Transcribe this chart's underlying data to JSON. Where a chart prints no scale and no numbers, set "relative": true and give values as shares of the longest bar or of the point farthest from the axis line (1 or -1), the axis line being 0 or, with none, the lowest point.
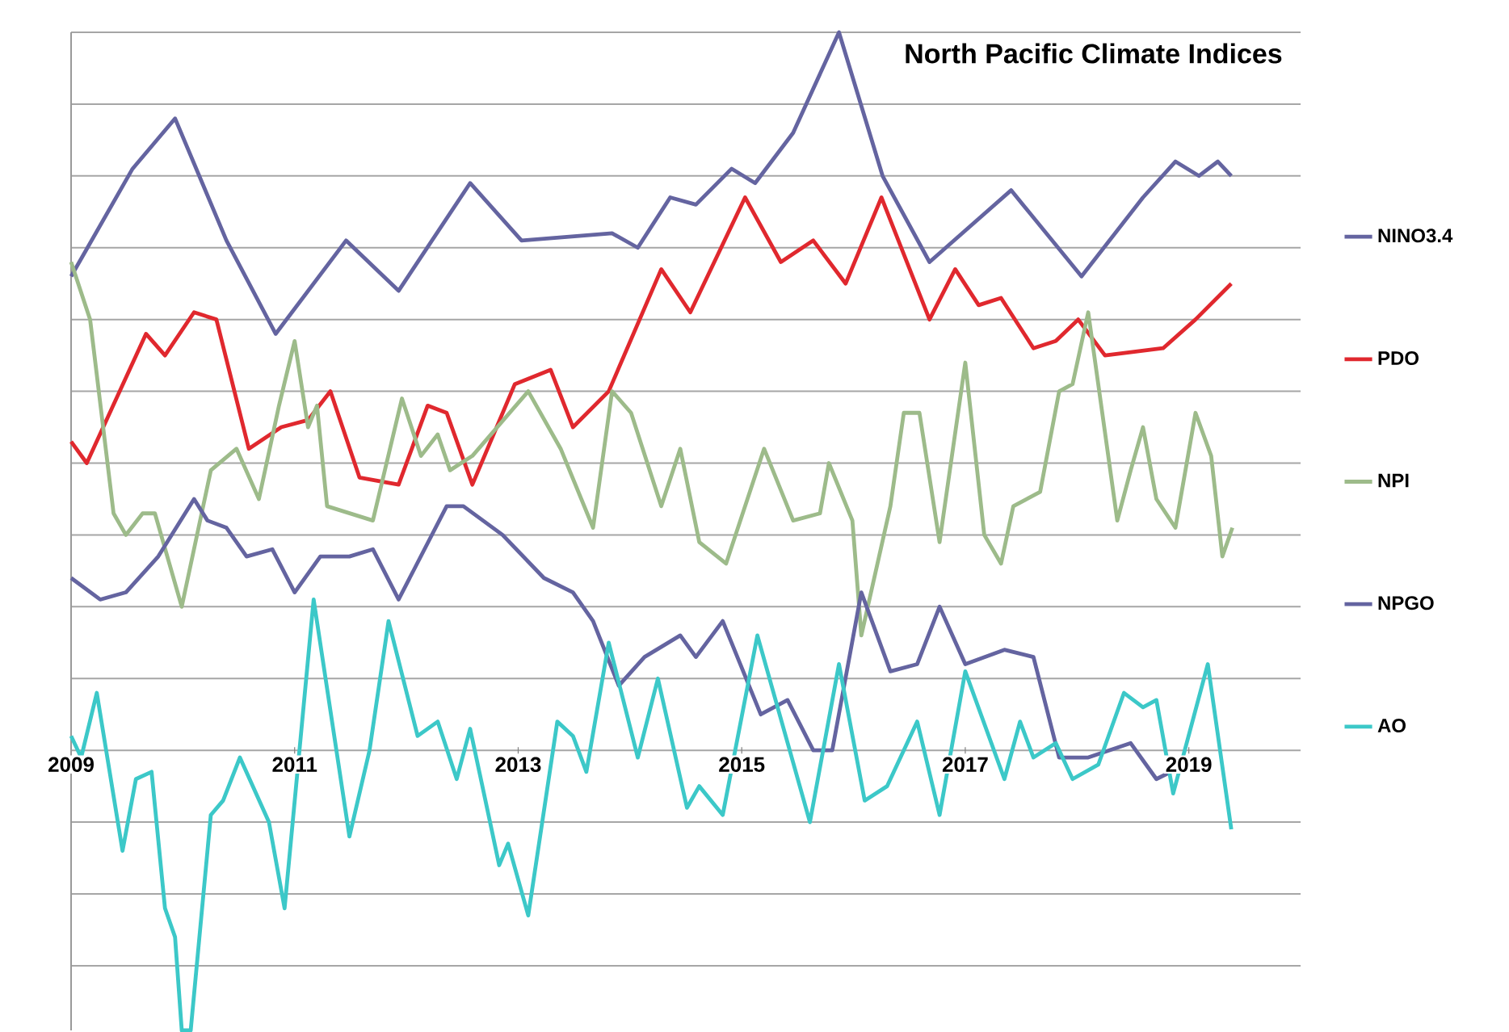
{
  "chart_data": {
    "type": "line",
    "title": "North Pacific Climate Indices",
    "relative": true,
    "xlim": [
      2009,
      2020
    ],
    "xticks": [
      2009,
      2011,
      2013,
      2015,
      2017,
      2019
    ],
    "grid": "y",
    "legend": "right",
    "series": [
      {
        "name": "NINO3.4",
        "color": "#6464a0",
        "x": [
          2009.0,
          2009.55,
          2009.93,
          2010.39,
          2010.83,
          2011.46,
          2011.93,
          2012.57,
          2013.03,
          2013.84,
          2014.07,
          2014.36,
          2014.59,
          2014.91,
          2015.12,
          2015.46,
          2015.87,
          2016.26,
          2016.68,
          2017.41,
          2018.04,
          2018.59,
          2018.88,
          2019.09,
          2019.26,
          2019.38
        ],
        "values": [
          0.66,
          0.81,
          0.88,
          0.71,
          0.58,
          0.71,
          0.64,
          0.79,
          0.71,
          0.72,
          0.7,
          0.77,
          0.76,
          0.81,
          0.79,
          0.86,
          1.0,
          0.8,
          0.68,
          0.78,
          0.66,
          0.77,
          0.82,
          0.8,
          0.82,
          0.8
        ]
      },
      {
        "name": "PDO",
        "color": "#e0282e",
        "x": [
          2009.0,
          2009.14,
          2009.67,
          2009.84,
          2010.1,
          2010.3,
          2010.59,
          2010.88,
          2011.12,
          2011.32,
          2011.58,
          2011.93,
          2012.19,
          2012.36,
          2012.59,
          2012.97,
          2013.29,
          2013.49,
          2013.81,
          2014.28,
          2014.54,
          2015.03,
          2015.35,
          2015.64,
          2015.93,
          2016.25,
          2016.68,
          2016.91,
          2017.12,
          2017.32,
          2017.61,
          2017.81,
          2018.01,
          2018.25,
          2018.77,
          2019.06,
          2019.38
        ],
        "values": [
          0.43,
          0.4,
          0.58,
          0.55,
          0.61,
          0.6,
          0.42,
          0.45,
          0.46,
          0.5,
          0.38,
          0.37,
          0.48,
          0.47,
          0.37,
          0.51,
          0.53,
          0.45,
          0.5,
          0.67,
          0.61,
          0.77,
          0.68,
          0.71,
          0.65,
          0.77,
          0.6,
          0.67,
          0.62,
          0.63,
          0.56,
          0.57,
          0.6,
          0.55,
          0.56,
          0.6,
          0.65
        ]
      },
      {
        "name": "NPI",
        "color": "#9dbb8a",
        "x": [
          2009.0,
          2009.17,
          2009.38,
          2009.49,
          2009.64,
          2009.75,
          2009.99,
          2010.25,
          2010.48,
          2010.68,
          2010.86,
          2011.0,
          2011.12,
          2011.2,
          2011.29,
          2011.7,
          2011.96,
          2012.13,
          2012.28,
          2012.39,
          2012.59,
          2013.09,
          2013.38,
          2013.67,
          2013.84,
          2014.01,
          2014.28,
          2014.45,
          2014.62,
          2014.86,
          2015.2,
          2015.46,
          2015.7,
          2015.78,
          2015.99,
          2016.07,
          2016.33,
          2016.45,
          2016.59,
          2016.77,
          2017.0,
          2017.17,
          2017.32,
          2017.43,
          2017.67,
          2017.84,
          2017.96,
          2018.1,
          2018.36,
          2018.48,
          2018.59,
          2018.71,
          2018.88,
          2019.06,
          2019.2,
          2019.3,
          2019.39
        ],
        "values": [
          0.68,
          0.6,
          0.33,
          0.3,
          0.33,
          0.33,
          0.2,
          0.39,
          0.42,
          0.35,
          0.48,
          0.57,
          0.45,
          0.48,
          0.34,
          0.32,
          0.49,
          0.41,
          0.44,
          0.39,
          0.41,
          0.5,
          0.42,
          0.31,
          0.5,
          0.47,
          0.34,
          0.42,
          0.29,
          0.26,
          0.42,
          0.32,
          0.33,
          0.4,
          0.32,
          0.16,
          0.34,
          0.47,
          0.47,
          0.29,
          0.54,
          0.3,
          0.26,
          0.34,
          0.36,
          0.5,
          0.51,
          0.61,
          0.32,
          0.39,
          0.45,
          0.35,
          0.31,
          0.47,
          0.41,
          0.27,
          0.31
        ]
      },
      {
        "name": "NPGO",
        "color": "#6464a0",
        "x": [
          2009.0,
          2009.26,
          2009.49,
          2009.78,
          2010.1,
          2010.22,
          2010.39,
          2010.57,
          2010.8,
          2011.0,
          2011.23,
          2011.49,
          2011.7,
          2011.93,
          2012.36,
          2012.51,
          2012.86,
          2013.23,
          2013.49,
          2013.67,
          2013.9,
          2014.13,
          2014.45,
          2014.59,
          2014.83,
          2015.17,
          2015.41,
          2015.64,
          2015.81,
          2016.07,
          2016.33,
          2016.57,
          2016.77,
          2017.0,
          2017.35,
          2017.61,
          2017.84,
          2018.1,
          2018.48,
          2018.71,
          2018.97
        ],
        "values": [
          0.24,
          0.21,
          0.22,
          0.27,
          0.35,
          0.32,
          0.31,
          0.27,
          0.28,
          0.22,
          0.27,
          0.27,
          0.28,
          0.21,
          0.34,
          0.34,
          0.3,
          0.24,
          0.22,
          0.18,
          0.09,
          0.13,
          0.16,
          0.13,
          0.18,
          0.05,
          0.07,
          0.0,
          0.0,
          0.22,
          0.11,
          0.12,
          0.2,
          0.12,
          0.14,
          0.13,
          -0.01,
          -0.01,
          0.01,
          -0.04,
          -0.02
        ]
      },
      {
        "name": "AO",
        "color": "#3cc8c8",
        "x": [
          2009.0,
          2009.09,
          2009.23,
          2009.46,
          2009.58,
          2009.72,
          2009.84,
          2009.93,
          2009.99,
          2010.07,
          2010.25,
          2010.36,
          2010.51,
          2010.77,
          2010.91,
          2011.17,
          2011.49,
          2011.67,
          2011.84,
          2012.1,
          2012.28,
          2012.45,
          2012.57,
          2012.68,
          2012.83,
          2012.91,
          2013.09,
          2013.35,
          2013.49,
          2013.61,
          2013.81,
          2014.07,
          2014.25,
          2014.51,
          2014.62,
          2014.83,
          2015.14,
          2015.61,
          2015.87,
          2016.1,
          2016.3,
          2016.57,
          2016.77,
          2017.0,
          2017.35,
          2017.49,
          2017.61,
          2017.81,
          2017.96,
          2018.19,
          2018.42,
          2018.59,
          2018.71,
          2018.86,
          2019.17,
          2019.38
        ],
        "values": [
          0.02,
          -0.01,
          0.08,
          -0.14,
          -0.04,
          -0.03,
          -0.22,
          -0.26,
          -0.39,
          -0.39,
          -0.09,
          -0.07,
          -0.01,
          -0.1,
          -0.22,
          0.21,
          -0.12,
          0.0,
          0.18,
          0.02,
          0.04,
          -0.04,
          0.03,
          -0.05,
          -0.16,
          -0.13,
          -0.23,
          0.04,
          0.02,
          -0.03,
          0.15,
          -0.01,
          0.1,
          -0.08,
          -0.05,
          -0.09,
          0.16,
          -0.1,
          0.12,
          -0.07,
          -0.05,
          0.04,
          -0.09,
          0.11,
          -0.04,
          0.04,
          -0.01,
          0.01,
          -0.04,
          -0.02,
          0.08,
          0.06,
          0.07,
          -0.06,
          0.12,
          -0.11
        ]
      }
    ]
  }
}
